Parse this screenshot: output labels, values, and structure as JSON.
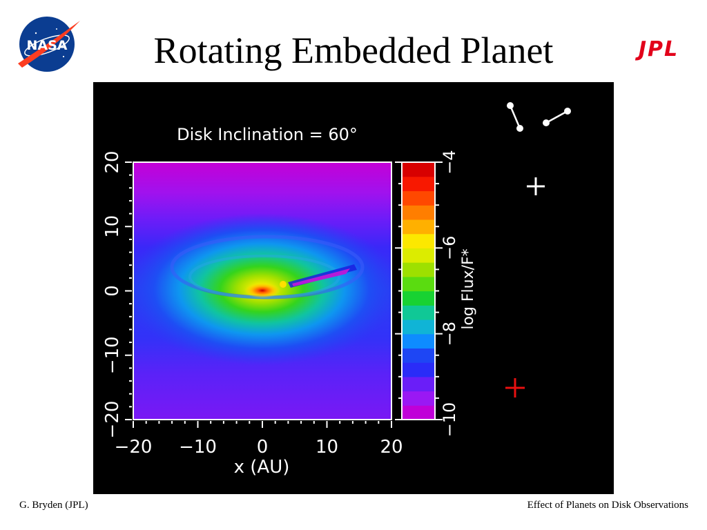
{
  "slide": {
    "title": "Rotating Embedded Planet",
    "footer_left": "G. Bryden (JPL)",
    "footer_right": "Effect of Planets on Disk Observations",
    "logos": {
      "left": "NASA",
      "right": "JPL"
    }
  },
  "chart_data": {
    "type": "heatmap",
    "title": "Disk Inclination = 60°",
    "xlabel": "x (AU)",
    "ylabel": "",
    "xlim": [
      -20,
      20
    ],
    "ylim": [
      -20,
      20
    ],
    "x_ticks": [
      "−20",
      "−10",
      "0",
      "10",
      "20"
    ],
    "y_ticks": [
      "−20",
      "−10",
      "0",
      "10",
      "20"
    ],
    "colorbar": {
      "label": "log Flux/F*",
      "range": [
        -10,
        -4
      ],
      "ticks": [
        "−10",
        "−8",
        "−6",
        "−4"
      ],
      "colors": [
        "#c000d8",
        "#9a18f4",
        "#6a1ef8",
        "#2a2cf8",
        "#1e46f4",
        "#0e8cff",
        "#10b4d6",
        "#10c896",
        "#18d232",
        "#5adc10",
        "#9ee000",
        "#dcec00",
        "#fce800",
        "#ffb000",
        "#ff7e00",
        "#ff4800",
        "#f81800",
        "#d80000"
      ]
    },
    "features": {
      "star_position": [
        0,
        0
      ],
      "planet_shadow_direction": "upper-right"
    },
    "colors": {
      "background": "#000000",
      "text": "#ffffff",
      "marker_red": "#e81010"
    }
  }
}
